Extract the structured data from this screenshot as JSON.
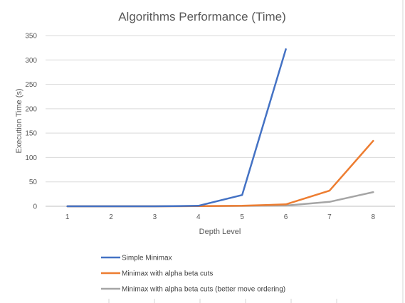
{
  "chart_data": {
    "type": "line",
    "title": "Algorithms Performance (Time)",
    "xlabel": "Depth Level",
    "ylabel": "Execution Time (s)",
    "x": [
      1,
      2,
      3,
      4,
      5,
      6,
      7,
      8
    ],
    "ylim": [
      0,
      350
    ],
    "yticks": [
      0,
      50,
      100,
      150,
      200,
      250,
      300,
      350
    ],
    "grid": "horizontal",
    "legend_position": "bottom",
    "series": [
      {
        "name": "Simple Minimax",
        "color": "#4472C4",
        "values": [
          0,
          0,
          0,
          1,
          23,
          322,
          null,
          null
        ]
      },
      {
        "name": "Minimax with alpha beta cuts",
        "color": "#ED7D31",
        "values": [
          0,
          0,
          0,
          0.5,
          1,
          4,
          32,
          134
        ]
      },
      {
        "name": "Minimax with alpha beta cuts (better move ordering)",
        "color": "#A5A5A5",
        "values": [
          0,
          0,
          0,
          0.3,
          0.8,
          1.5,
          9,
          29
        ]
      }
    ]
  }
}
